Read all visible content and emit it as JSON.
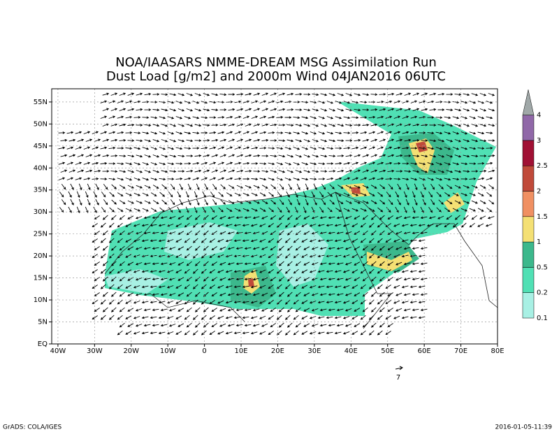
{
  "title": [
    "NOA/IAASARS NMME-DREAM MSG Assimilation Run",
    "Dust Load [g/m2] and 2000m Wind 04JAN2016 06UTC"
  ],
  "map": {
    "xlim": [
      -41.7,
      80
    ],
    "ylim": [
      0,
      58
    ],
    "xticks": [
      {
        "value": -40,
        "label": "40W"
      },
      {
        "value": -30,
        "label": "30W"
      },
      {
        "value": -20,
        "label": "20W"
      },
      {
        "value": -10,
        "label": "10W"
      },
      0,
      {
        "value": 10,
        "label": "10E"
      },
      {
        "value": 20,
        "label": "20E"
      },
      {
        "value": 30,
        "label": "30E"
      },
      {
        "value": 40,
        "label": "40E"
      },
      {
        "value": 50,
        "label": "50E"
      },
      {
        "value": 60,
        "label": "60E"
      },
      {
        "value": 70,
        "label": "70E"
      },
      {
        "value": 80,
        "label": "80E"
      }
    ],
    "yticks": [
      {
        "value": 0,
        "label": "EQ"
      },
      {
        "value": 5,
        "label": "5N"
      },
      {
        "value": 10,
        "label": "10N"
      },
      {
        "value": 15,
        "label": "15N"
      },
      {
        "value": 20,
        "label": "20N"
      },
      {
        "value": 25,
        "label": "25N"
      },
      {
        "value": 30,
        "label": "30N"
      },
      {
        "value": 35,
        "label": "35N"
      },
      {
        "value": 40,
        "label": "40N"
      },
      {
        "value": 45,
        "label": "45N"
      },
      {
        "value": 50,
        "label": "50N"
      },
      {
        "value": 55,
        "label": "55N"
      }
    ],
    "grid": true,
    "wind_reference": "7"
  },
  "colorbar": {
    "levels": [
      0.1,
      0.2,
      0.5,
      1,
      1.5,
      2,
      2.5,
      3,
      4
    ],
    "colors": [
      "#a8f0e4",
      "#50e0b4",
      "#3cb88c",
      "#f4e074",
      "#f09062",
      "#c04a3a",
      "#a01034",
      "#9068a8",
      "#a0a8a8"
    ]
  },
  "footer": {
    "left": "GrADS: COLA/IGES",
    "right": "2016-01-05-11:39"
  }
}
